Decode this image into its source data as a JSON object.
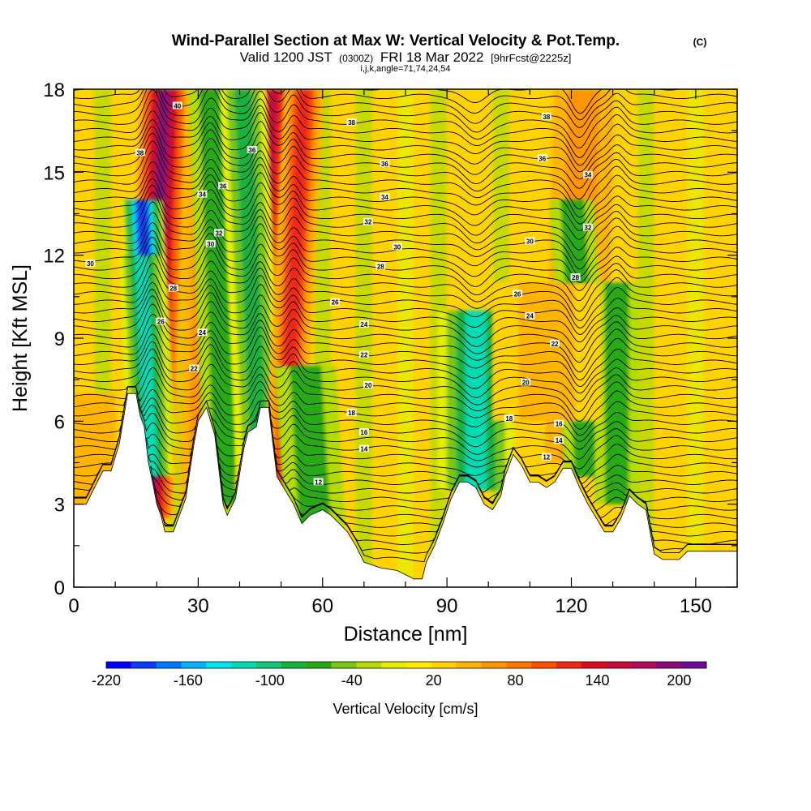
{
  "header": {
    "title": "Wind-Parallel Section at Max W: Vertical Velocity & Pot.Temp.",
    "copyright": "(C)",
    "subtitle_a": "Valid 1200 JST",
    "subtitle_b": "(0300Z)",
    "subtitle_c": "FRI 18 Mar 2022",
    "subtitle_d": "[9hrFcst@2225z]",
    "subtitle_params": "i,j,k,angle=71,74,24,54"
  },
  "chart_data": {
    "type": "heatmap",
    "xlabel": "Distance [nm]",
    "ylabel": "Height [Kft MSL]",
    "xlim": [
      0,
      160
    ],
    "ylim": [
      0,
      18
    ],
    "x_ticks": [
      "0",
      "30",
      "60",
      "90",
      "120",
      "150"
    ],
    "y_ticks": [
      "0",
      "3",
      "6",
      "9",
      "12",
      "15",
      "18"
    ],
    "colorbar": {
      "label": "Vertical Velocity [cm/s]",
      "range": [
        -220,
        220
      ],
      "tick_labels": [
        "-220",
        "-160",
        "-100",
        "-40",
        "20",
        "80",
        "140",
        "200"
      ],
      "colors": [
        "#0000ff",
        "#0a3cff",
        "#0078ff",
        "#00b4ff",
        "#00e6f0",
        "#00dcb4",
        "#14c878",
        "#14b43c",
        "#28aa14",
        "#78c814",
        "#b4dc00",
        "#e6ee00",
        "#ffee00",
        "#ffd200",
        "#ffb400",
        "#ff9600",
        "#ff7800",
        "#ff5000",
        "#f02814",
        "#dc0a1e",
        "#c80a3c",
        "#b40a5a",
        "#8c0a78",
        "#6e0a96"
      ]
    },
    "background_level": 20,
    "terrain_top_kft": [
      [
        0,
        3
      ],
      [
        3,
        3
      ],
      [
        7,
        4.2
      ],
      [
        9,
        4.2
      ],
      [
        11,
        5.2
      ],
      [
        13,
        7.0
      ],
      [
        15,
        7.0
      ],
      [
        16,
        6.2
      ],
      [
        17,
        5.8
      ],
      [
        18,
        4.5
      ],
      [
        19,
        3.8
      ],
      [
        20,
        3.0
      ],
      [
        21,
        2.6
      ],
      [
        22,
        2.0
      ],
      [
        24,
        2.0
      ],
      [
        26,
        2.8
      ],
      [
        27,
        3.2
      ],
      [
        28,
        4.2
      ],
      [
        29,
        5.2
      ],
      [
        30,
        6.0
      ],
      [
        32,
        6.5
      ],
      [
        34,
        5.5
      ],
      [
        36,
        3.0
      ],
      [
        37,
        2.6
      ],
      [
        39,
        3.2
      ],
      [
        41,
        5.0
      ],
      [
        42,
        5.6
      ],
      [
        44,
        5.8
      ],
      [
        45,
        6.5
      ],
      [
        47,
        6.5
      ],
      [
        48,
        5.2
      ],
      [
        49,
        4.0
      ],
      [
        51,
        3.5
      ],
      [
        53,
        3.0
      ],
      [
        55,
        2.3
      ],
      [
        57,
        2.6
      ],
      [
        60,
        2.8
      ],
      [
        62,
        2.6
      ],
      [
        64,
        2.3
      ],
      [
        66,
        2.0
      ],
      [
        68,
        1.5
      ],
      [
        70,
        0.9
      ],
      [
        74,
        0.7
      ],
      [
        78,
        0.6
      ],
      [
        82,
        0.3
      ],
      [
        84,
        0.3
      ],
      [
        85,
        0.9
      ],
      [
        87,
        1.5
      ],
      [
        89,
        2.3
      ],
      [
        91,
        3.2
      ],
      [
        93,
        3.8
      ],
      [
        95,
        3.8
      ],
      [
        97,
        3.6
      ],
      [
        99,
        3.0
      ],
      [
        101,
        2.8
      ],
      [
        103,
        3.3
      ],
      [
        104,
        4.0
      ],
      [
        106,
        4.8
      ],
      [
        108,
        4.4
      ],
      [
        110,
        3.8
      ],
      [
        112,
        3.8
      ],
      [
        114,
        3.6
      ],
      [
        116,
        3.8
      ],
      [
        118,
        4.3
      ],
      [
        120,
        4.3
      ],
      [
        122,
        3.6
      ],
      [
        124,
        3.0
      ],
      [
        126,
        2.5
      ],
      [
        128,
        2.0
      ],
      [
        130,
        2.0
      ],
      [
        132,
        2.5
      ],
      [
        134,
        3.3
      ],
      [
        136,
        3.0
      ],
      [
        138,
        2.8
      ],
      [
        139,
        2.0
      ],
      [
        140,
        1.2
      ],
      [
        142,
        1.0
      ],
      [
        146,
        1.0
      ],
      [
        148,
        1.3
      ],
      [
        160,
        1.3
      ]
    ],
    "vertical_velocity_features": [
      {
        "x": 20,
        "y_min": 2.5,
        "y_max": 18,
        "width_nm": 1.8,
        "tilt_nm_per_kft": 0.25,
        "peak": 190
      },
      {
        "x": 18,
        "y_min": 5.0,
        "y_max": 14,
        "width_nm": 1.5,
        "tilt_nm_per_kft": -0.35,
        "peak": -200
      },
      {
        "x": 17.5,
        "y_min": 4.0,
        "y_max": 12,
        "width_nm": 1.6,
        "tilt_nm_per_kft": -0.3,
        "peak": -120
      },
      {
        "x": 33,
        "y_min": 3.0,
        "y_max": 18,
        "width_nm": 2.0,
        "tilt_nm_per_kft": 0.1,
        "peak": 80
      },
      {
        "x": 35,
        "y_min": 3.0,
        "y_max": 18,
        "width_nm": 1.6,
        "tilt_nm_per_kft": -0.25,
        "peak": -60
      },
      {
        "x": 46,
        "y_min": 3.5,
        "y_max": 18,
        "width_nm": 1.5,
        "tilt_nm_per_kft": 0.3,
        "peak": 150
      },
      {
        "x": 43,
        "y_min": 3.0,
        "y_max": 18,
        "width_nm": 1.7,
        "tilt_nm_per_kft": -0.3,
        "peak": -80
      },
      {
        "x": 53,
        "y_min": 3.0,
        "y_max": 18,
        "width_nm": 1.4,
        "tilt_nm_per_kft": 0.35,
        "peak": 120
      },
      {
        "x": 57,
        "y_min": 2.2,
        "y_max": 8,
        "width_nm": 2.2,
        "tilt_nm_per_kft": -0.4,
        "peak": -60
      },
      {
        "x": 97,
        "y_min": 3.5,
        "y_max": 10,
        "width_nm": 2.8,
        "tilt_nm_per_kft": 0.0,
        "peak": -120
      },
      {
        "x": 122,
        "y_min": 4.5,
        "y_max": 18,
        "width_nm": 2.2,
        "tilt_nm_per_kft": 0.15,
        "peak": 60
      },
      {
        "x": 122,
        "y_min": 4.0,
        "y_max": 14,
        "width_nm": 1.6,
        "tilt_nm_per_kft": -0.35,
        "peak": -60
      },
      {
        "x": 131,
        "y_min": 3.0,
        "y_max": 11,
        "width_nm": 1.6,
        "tilt_nm_per_kft": 0.0,
        "peak": -60
      },
      {
        "x": 114,
        "y_min": 6.0,
        "y_max": 11,
        "width_nm": 4.0,
        "tilt_nm_per_kft": 0.0,
        "peak": 50
      },
      {
        "x": 5,
        "y_min": 3.0,
        "y_max": 7.0,
        "width_nm": 3.0,
        "tilt_nm_per_kft": 0.0,
        "peak": 45
      }
    ],
    "potential_temperature": {
      "contour_interval": 1,
      "labeled_levels": [
        {
          "value": "40",
          "x": 25,
          "y": 17.4
        },
        {
          "value": "38",
          "x": 16,
          "y": 15.7
        },
        {
          "value": "38",
          "x": 67,
          "y": 16.8
        },
        {
          "value": "38",
          "x": 114,
          "y": 17.0
        },
        {
          "value": "36",
          "x": 36,
          "y": 14.5
        },
        {
          "value": "36",
          "x": 43,
          "y": 15.8
        },
        {
          "value": "36",
          "x": 75,
          "y": 15.3
        },
        {
          "value": "36",
          "x": 113,
          "y": 15.5
        },
        {
          "value": "34",
          "x": 31,
          "y": 14.2
        },
        {
          "value": "34",
          "x": 75,
          "y": 14.1
        },
        {
          "value": "34",
          "x": 124,
          "y": 14.9
        },
        {
          "value": "32",
          "x": 71,
          "y": 13.2
        },
        {
          "value": "32",
          "x": 35,
          "y": 12.8
        },
        {
          "value": "32",
          "x": 124,
          "y": 13.0
        },
        {
          "value": "30",
          "x": 33,
          "y": 12.4
        },
        {
          "value": "30",
          "x": 4,
          "y": 11.7
        },
        {
          "value": "30",
          "x": 78,
          "y": 12.3
        },
        {
          "value": "30",
          "x": 110,
          "y": 12.5
        },
        {
          "value": "28",
          "x": 24,
          "y": 10.8
        },
        {
          "value": "28",
          "x": 74,
          "y": 11.6
        },
        {
          "value": "28",
          "x": 121,
          "y": 11.2
        },
        {
          "value": "26",
          "x": 63,
          "y": 10.3
        },
        {
          "value": "26",
          "x": 107,
          "y": 10.6
        },
        {
          "value": "26",
          "x": 21,
          "y": 9.6
        },
        {
          "value": "24",
          "x": 31,
          "y": 9.2
        },
        {
          "value": "24",
          "x": 70,
          "y": 9.5
        },
        {
          "value": "24",
          "x": 110,
          "y": 9.8
        },
        {
          "value": "22",
          "x": 29,
          "y": 7.9
        },
        {
          "value": "22",
          "x": 116,
          "y": 8.8
        },
        {
          "value": "22",
          "x": 70,
          "y": 8.4
        },
        {
          "value": "20",
          "x": 71,
          "y": 7.3
        },
        {
          "value": "20",
          "x": 109,
          "y": 7.4
        },
        {
          "value": "18",
          "x": 67,
          "y": 6.3
        },
        {
          "value": "18",
          "x": 105,
          "y": 6.1
        },
        {
          "value": "16",
          "x": 70,
          "y": 5.6
        },
        {
          "value": "16",
          "x": 117,
          "y": 5.9
        },
        {
          "value": "14",
          "x": 70,
          "y": 5.0
        },
        {
          "value": "14",
          "x": 117,
          "y": 5.3
        },
        {
          "value": "12",
          "x": 114,
          "y": 4.7
        },
        {
          "value": "12",
          "x": 59,
          "y": 3.8
        }
      ]
    }
  }
}
